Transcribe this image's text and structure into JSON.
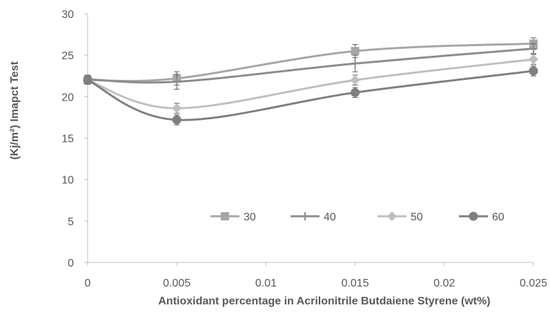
{
  "chart_data": {
    "type": "line",
    "smooth": true,
    "xlabel": "Antioxidant percentage in Acrilonitrile Butdaiene Styrene  (wt%)",
    "ylabel": "(Kj/m²) Imapct Test",
    "xlim": [
      0,
      0.025
    ],
    "ylim": [
      0,
      30
    ],
    "x": [
      0,
      0.005,
      0.015,
      0.025
    ],
    "x_ticks": [
      0,
      0.005,
      0.01,
      0.015,
      0.02,
      0.025
    ],
    "x_tick_labels": [
      "0",
      "0.005",
      "0.01",
      "0.015",
      "0.02",
      "0.025"
    ],
    "y_ticks": [
      0,
      5,
      10,
      15,
      20,
      25,
      30
    ],
    "y_tick_labels": [
      "0",
      "5",
      "10",
      "15",
      "20",
      "25",
      "30"
    ],
    "grid": false,
    "legend_position": "bottom-right inside",
    "series": [
      {
        "name": "30",
        "values": [
          22.0,
          22.2,
          25.5,
          26.4
        ],
        "errors": [
          0.5,
          0.8,
          0.8,
          0.7
        ],
        "color": "#a6a6a6",
        "marker": "square"
      },
      {
        "name": "40",
        "values": [
          22.1,
          21.8,
          24.0,
          25.8
        ],
        "errors": [
          0.5,
          0.9,
          1.0,
          0.6
        ],
        "color": "#8c8c8c",
        "marker": "plus"
      },
      {
        "name": "50",
        "values": [
          22.0,
          18.6,
          22.0,
          24.5
        ],
        "errors": [
          0.5,
          0.6,
          0.6,
          0.6
        ],
        "color": "#bfbfbf",
        "marker": "diamond"
      },
      {
        "name": "60",
        "values": [
          22.0,
          17.2,
          20.5,
          23.1
        ],
        "errors": [
          0.5,
          0.6,
          0.6,
          0.6
        ],
        "color": "#7f7f7f",
        "marker": "circle"
      }
    ]
  }
}
